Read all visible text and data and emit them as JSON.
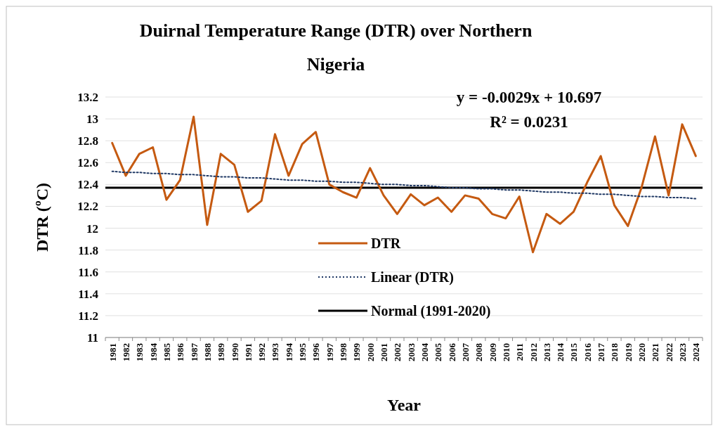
{
  "chart_data": {
    "type": "line",
    "title": "Duirnal Temperature Range (DTR) over Northern Nigeria",
    "xlabel": "Year",
    "ylabel": "DTR (ºC)",
    "categories": [
      "1981",
      "1982",
      "1983",
      "1984",
      "1985",
      "1986",
      "1987",
      "1988",
      "1989",
      "1990",
      "1991",
      "1992",
      "1993",
      "1994",
      "1995",
      "1996",
      "1997",
      "1998",
      "1999",
      "2000",
      "2001",
      "2002",
      "2003",
      "2004",
      "2005",
      "2006",
      "2007",
      "2008",
      "2009",
      "2010",
      "2011",
      "2012",
      "2013",
      "2014",
      "2015",
      "2016",
      "2017",
      "2018",
      "2019",
      "2020",
      "2021",
      "2022",
      "2023",
      "2024"
    ],
    "series": [
      {
        "name": "DTR",
        "color": "#c55a11",
        "line_style": "solid",
        "values": [
          12.78,
          12.48,
          12.68,
          12.74,
          12.26,
          12.44,
          13.02,
          12.03,
          12.68,
          12.58,
          12.15,
          12.25,
          12.86,
          12.48,
          12.77,
          12.88,
          12.4,
          12.33,
          12.28,
          12.55,
          12.3,
          12.13,
          12.31,
          12.21,
          12.28,
          12.15,
          12.3,
          12.27,
          12.13,
          12.09,
          12.29,
          11.78,
          12.13,
          12.04,
          12.15,
          12.42,
          12.66,
          12.21,
          12.02,
          12.37,
          12.84,
          12.3,
          12.95,
          12.66
        ]
      },
      {
        "name": "Linear (DTR)",
        "color": "#1f3864",
        "line_style": "dotted",
        "values": [
          12.52,
          12.51,
          12.51,
          12.5,
          12.5,
          12.49,
          12.49,
          12.48,
          12.47,
          12.47,
          12.46,
          12.46,
          12.45,
          12.44,
          12.44,
          12.43,
          12.43,
          12.42,
          12.42,
          12.41,
          12.4,
          12.4,
          12.39,
          12.39,
          12.38,
          12.37,
          12.37,
          12.36,
          12.36,
          12.35,
          12.35,
          12.34,
          12.33,
          12.33,
          12.32,
          12.32,
          12.31,
          12.31,
          12.3,
          12.29,
          12.29,
          12.28,
          12.28,
          12.27
        ]
      }
    ],
    "ref_lines": [
      {
        "axis": "y",
        "value": 12.37,
        "label": "Normal (1991-2020)",
        "color": "#000000",
        "line_style": "solid"
      }
    ],
    "annotations": [
      "y = -0.0029x + 10.697",
      "R² = 0.0231"
    ],
    "ylim": [
      11,
      13.2
    ],
    "yticks": [
      11,
      11.2,
      11.4,
      11.6,
      11.8,
      12,
      12.2,
      12.4,
      12.6,
      12.8,
      13,
      13.2
    ],
    "grid": "y",
    "legend": "bottom",
    "marker": "none"
  }
}
